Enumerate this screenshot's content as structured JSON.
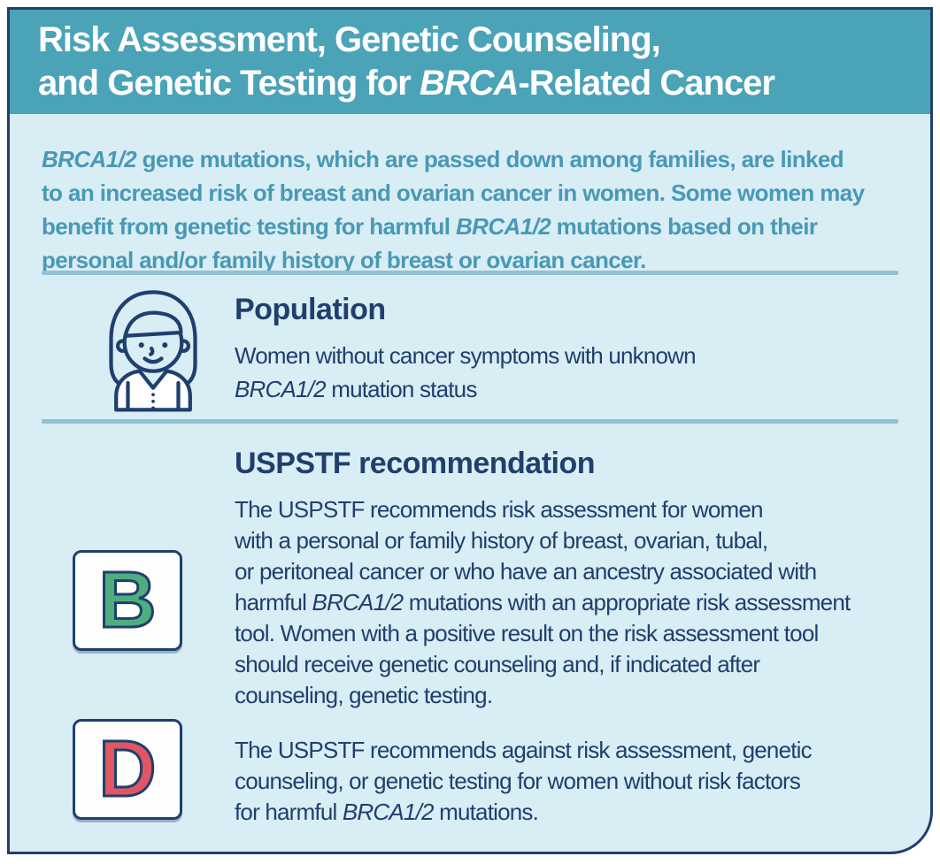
{
  "card": {
    "header": {
      "title_segments": [
        {
          "t": "Risk Assessment, Genetic Counseling,\nand Genetic Testing for "
        },
        {
          "t": "BRCA",
          "i": true
        },
        {
          "t": "-Related Cancer"
        }
      ]
    },
    "intro_segments": [
      {
        "t": "BRCA1/2",
        "i": true
      },
      {
        "t": " gene mutations, which are passed down among families, are linked\nto an increased risk of breast and ovarian cancer in women. Some women may\nbenefit from genetic testing for harmful "
      },
      {
        "t": "BRCA1/2",
        "i": true
      },
      {
        "t": " mutations based on their\npersonal and/or family history of breast or ovarian cancer."
      }
    ],
    "population": {
      "icon": "woman-icon",
      "heading": "Population",
      "body_segments": [
        {
          "t": "Women without cancer symptoms with unknown\n"
        },
        {
          "t": "BRCA1/2",
          "i": true
        },
        {
          "t": " mutation status"
        }
      ]
    },
    "recommendation": {
      "heading": "USPSTF recommendation",
      "items": [
        {
          "grade": "B",
          "text_segments": [
            {
              "t": "The USPSTF recommends risk assessment for women\nwith a personal or family history of breast, ovarian, tubal,\nor peritoneal cancer or who have an ancestry associated with\nharmful "
            },
            {
              "t": "BRCA1/2",
              "i": true
            },
            {
              "t": " mutations with an appropriate risk assessment\ntool. Women with a positive result on the risk assessment tool\nshould receive genetic counseling and, if indicated after\ncounseling, genetic testing."
            }
          ]
        },
        {
          "grade": "D",
          "text_segments": [
            {
              "t": "The USPSTF recommends against risk assessment, genetic\ncounseling, or genetic testing for women without risk factors\nfor harmful "
            },
            {
              "t": "BRCA1/2",
              "i": true
            },
            {
              "t": " mutations."
            }
          ]
        }
      ]
    },
    "colors": {
      "header_bg": "#4ba3b8",
      "card_bg": "#d9edf4",
      "navy": "#1f3f6e",
      "teal_text": "#4899b6",
      "divider": "#8fc2d3",
      "grade_b_green": "#4fae7e",
      "grade_d_red": "#e25663",
      "box_bg": "#fefefe",
      "page_bg": "#ffffff"
    }
  }
}
